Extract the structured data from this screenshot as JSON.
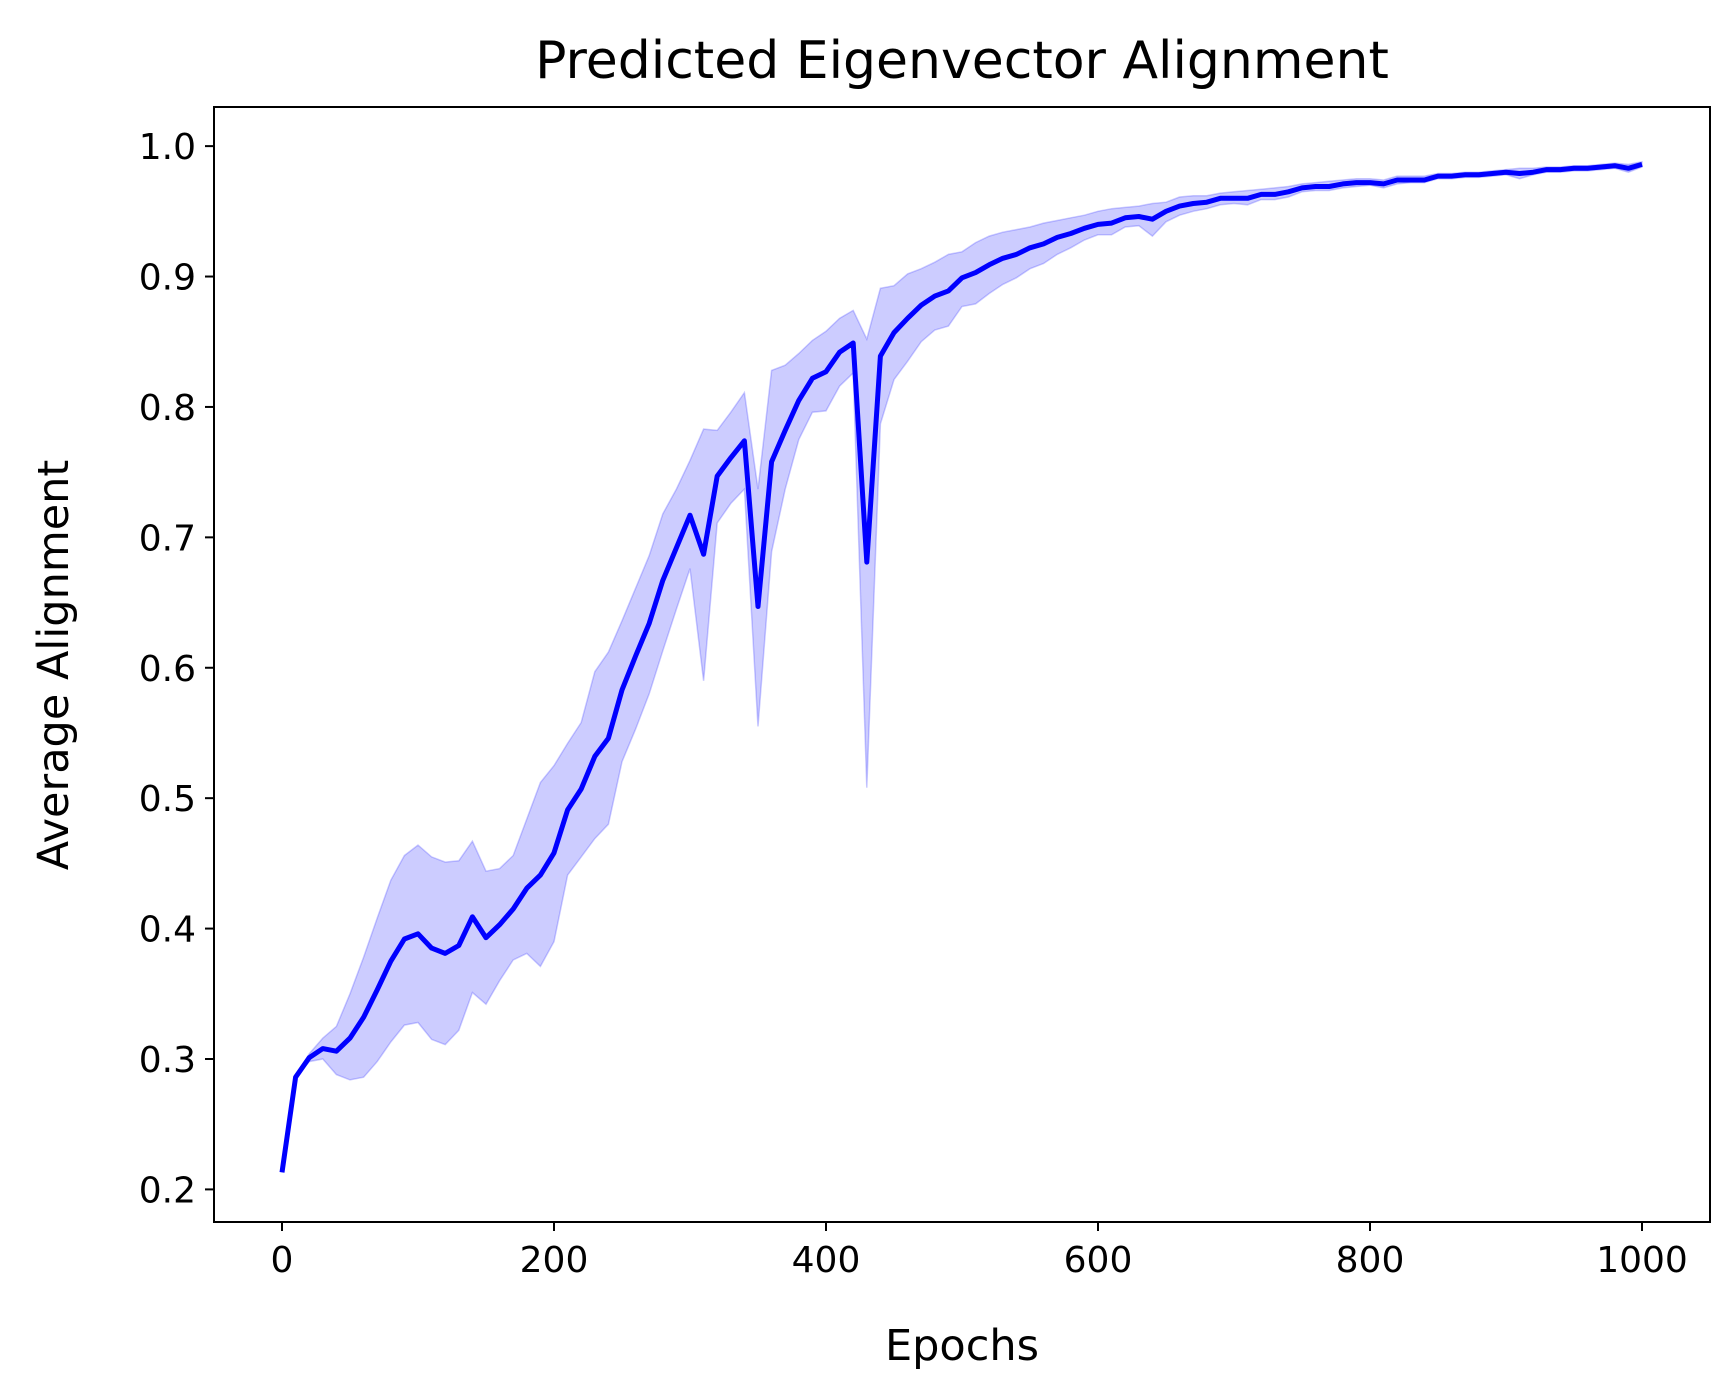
{
  "chart_data": {
    "type": "line",
    "title": "Predicted Eigenvector Alignment",
    "xlabel": "Epochs",
    "ylabel": "Average Alignment",
    "xlim": [
      -50,
      1050
    ],
    "ylim": [
      0.175,
      1.03
    ],
    "xticks": [
      0,
      200,
      400,
      600,
      800,
      1000
    ],
    "xtick_labels": [
      "0",
      "200",
      "400",
      "600",
      "800",
      "1000"
    ],
    "yticks": [
      0.2,
      0.3,
      0.4,
      0.5,
      0.6,
      0.7,
      0.8,
      0.9,
      1.0
    ],
    "ytick_labels": [
      "0.2",
      "0.3",
      "0.4",
      "0.5",
      "0.6",
      "0.7",
      "0.8",
      "0.9",
      "1.0"
    ],
    "grid": false,
    "colors": {
      "line": "#0000ff",
      "band": "#0000ff",
      "band_opacity": 0.2
    },
    "series": [
      {
        "x": [
          0,
          10,
          20,
          30,
          40,
          50,
          60,
          70,
          80,
          90,
          100,
          110,
          120,
          130,
          140,
          150,
          160,
          170,
          180,
          190,
          200,
          210,
          220,
          230,
          240,
          250,
          260,
          270,
          280,
          290,
          300,
          310,
          320,
          330,
          340,
          350,
          360,
          370,
          380,
          390,
          400,
          410,
          420,
          430,
          440,
          450,
          460,
          470,
          480,
          490,
          500,
          510,
          520,
          530,
          540,
          550,
          560,
          570,
          580,
          590,
          600,
          610,
          620,
          630,
          640,
          650,
          660,
          670,
          680,
          690,
          700,
          710,
          720,
          730,
          740,
          750,
          760,
          770,
          780,
          790,
          800,
          810,
          820,
          830,
          840,
          850,
          860,
          870,
          880,
          890,
          900,
          910,
          920,
          930,
          940,
          950,
          960,
          970,
          980,
          990,
          1000
        ],
        "y": [
          0.213,
          0.286,
          0.301,
          0.308,
          0.306,
          0.316,
          0.332,
          0.353,
          0.375,
          0.392,
          0.396,
          0.385,
          0.381,
          0.387,
          0.409,
          0.393,
          0.403,
          0.415,
          0.431,
          0.441,
          0.458,
          0.491,
          0.507,
          0.532,
          0.546,
          0.583,
          0.609,
          0.634,
          0.667,
          0.692,
          0.717,
          0.687,
          0.747,
          0.761,
          0.774,
          0.647,
          0.758,
          0.782,
          0.805,
          0.822,
          0.827,
          0.842,
          0.849,
          0.681,
          0.839,
          0.857,
          0.868,
          0.878,
          0.885,
          0.889,
          0.899,
          0.903,
          0.909,
          0.914,
          0.917,
          0.922,
          0.925,
          0.93,
          0.933,
          0.937,
          0.94,
          0.941,
          0.945,
          0.946,
          0.944,
          0.95,
          0.954,
          0.956,
          0.957,
          0.96,
          0.96,
          0.96,
          0.963,
          0.963,
          0.965,
          0.968,
          0.969,
          0.969,
          0.971,
          0.972,
          0.972,
          0.971,
          0.974,
          0.974,
          0.974,
          0.977,
          0.977,
          0.978,
          0.978,
          0.979,
          0.98,
          0.979,
          0.98,
          0.982,
          0.982,
          0.983,
          0.983,
          0.984,
          0.985,
          0.983,
          0.986
        ],
        "lower": [
          0.213,
          0.286,
          0.298,
          0.3,
          0.288,
          0.284,
          0.286,
          0.298,
          0.313,
          0.326,
          0.328,
          0.315,
          0.311,
          0.322,
          0.351,
          0.342,
          0.36,
          0.376,
          0.381,
          0.371,
          0.39,
          0.441,
          0.455,
          0.469,
          0.48,
          0.528,
          0.553,
          0.58,
          0.613,
          0.645,
          0.676,
          0.59,
          0.711,
          0.726,
          0.737,
          0.555,
          0.689,
          0.737,
          0.775,
          0.796,
          0.797,
          0.816,
          0.826,
          0.508,
          0.787,
          0.821,
          0.835,
          0.85,
          0.859,
          0.862,
          0.877,
          0.879,
          0.887,
          0.894,
          0.899,
          0.906,
          0.91,
          0.917,
          0.922,
          0.928,
          0.932,
          0.932,
          0.938,
          0.939,
          0.931,
          0.942,
          0.947,
          0.95,
          0.952,
          0.955,
          0.956,
          0.955,
          0.959,
          0.959,
          0.961,
          0.965,
          0.966,
          0.966,
          0.968,
          0.969,
          0.97,
          0.968,
          0.971,
          0.972,
          0.972,
          0.975,
          0.975,
          0.976,
          0.976,
          0.977,
          0.978,
          0.975,
          0.978,
          0.98,
          0.98,
          0.981,
          0.981,
          0.982,
          0.983,
          0.98,
          0.984
        ],
        "upper": [
          0.213,
          0.286,
          0.304,
          0.316,
          0.325,
          0.35,
          0.378,
          0.408,
          0.437,
          0.456,
          0.464,
          0.455,
          0.451,
          0.452,
          0.467,
          0.444,
          0.446,
          0.456,
          0.484,
          0.512,
          0.525,
          0.542,
          0.558,
          0.597,
          0.612,
          0.636,
          0.661,
          0.686,
          0.718,
          0.737,
          0.759,
          0.783,
          0.782,
          0.796,
          0.811,
          0.737,
          0.828,
          0.832,
          0.841,
          0.851,
          0.858,
          0.868,
          0.874,
          0.852,
          0.891,
          0.893,
          0.902,
          0.906,
          0.911,
          0.917,
          0.919,
          0.926,
          0.931,
          0.934,
          0.936,
          0.938,
          0.941,
          0.943,
          0.945,
          0.947,
          0.95,
          0.952,
          0.953,
          0.954,
          0.956,
          0.957,
          0.961,
          0.962,
          0.962,
          0.964,
          0.965,
          0.966,
          0.967,
          0.968,
          0.969,
          0.971,
          0.972,
          0.973,
          0.974,
          0.975,
          0.975,
          0.974,
          0.977,
          0.977,
          0.977,
          0.979,
          0.979,
          0.98,
          0.98,
          0.981,
          0.982,
          0.983,
          0.983,
          0.984,
          0.984,
          0.985,
          0.985,
          0.986,
          0.987,
          0.986,
          0.988
        ]
      }
    ]
  }
}
